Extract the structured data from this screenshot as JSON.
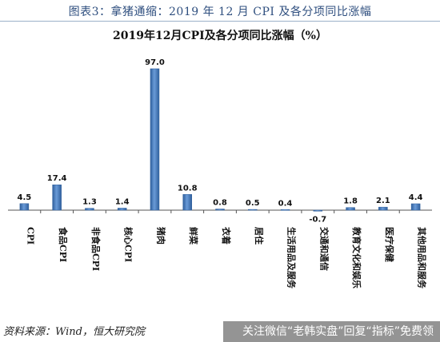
{
  "figure_caption": "图表3：拿猪通缩：2019 年 12 月 CPI 及各分项同比涨幅",
  "source_note": "资料来源：Wind，恒大研究院",
  "watermark_text": "关注微信“老韩实盘”回复“指标”免费领",
  "colors": {
    "bar_fill": "#4a7fc1",
    "bar_edge": "#2f5f9c",
    "caption": "#2f4f7f"
  },
  "chart_data": {
    "type": "bar",
    "title": "2019年12月CPI及各分项同比涨幅（%）",
    "categories": [
      "CPI",
      "食品CPI",
      "非食品CPI",
      "核心CPI",
      "猪肉",
      "鲜菜",
      "衣着",
      "居住",
      "生活用品及服务",
      "交通和通信",
      "教育文化和娱乐",
      "医疗保健",
      "其他用品和服务"
    ],
    "values": [
      4.5,
      17.4,
      1.3,
      1.4,
      97.0,
      10.8,
      0.8,
      0.5,
      0.4,
      -0.7,
      1.8,
      2.1,
      4.4
    ],
    "value_labels": [
      "4.5",
      "17.4",
      "1.3",
      "1.4",
      "97.0",
      "10.8",
      "0.8",
      "0.5",
      "0.4",
      "-0.7",
      "1.8",
      "2.1",
      "4.4"
    ],
    "ylim": [
      -5,
      100
    ],
    "grid": false,
    "legend": "none"
  }
}
